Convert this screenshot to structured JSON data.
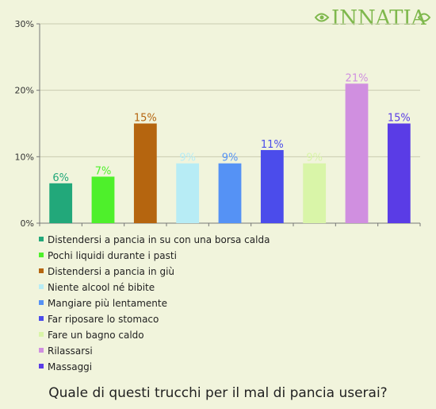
{
  "brand": {
    "logo_text": "INNATIA",
    "logo_color": "#7fb84d"
  },
  "question": "Quale di questi trucchi per il mal di pancia userai?",
  "chart_data": {
    "type": "bar",
    "ylim": [
      0,
      30
    ],
    "y_ticks": [
      0,
      10,
      20,
      30
    ],
    "y_tick_labels": [
      "0%",
      "10%",
      "20%",
      "30%"
    ],
    "grid": true,
    "legend_position": "bottom",
    "categories": [
      "Distendersi a pancia in su con una borsa calda",
      "Pochi liquidi durante i pasti",
      "Distendersi a pancia in giù",
      "Niente alcool né bibite",
      "Mangiare più lentamente",
      "Far riposare lo stomaco",
      "Fare un bagno caldo",
      "Rilassarsi",
      "Massaggi"
    ],
    "values": [
      6,
      7,
      15,
      9,
      9,
      11,
      9,
      21,
      15
    ],
    "value_labels": [
      "6%",
      "7%",
      "15%",
      "9%",
      "9%",
      "11%",
      "9%",
      "21%",
      "15%"
    ],
    "colors": [
      "#22a87a",
      "#4ef02b",
      "#b5650f",
      "#b7ecf5",
      "#5592f5",
      "#4b4ceb",
      "#d9f5a8",
      "#d08fe0",
      "#5a3ce6"
    ]
  }
}
